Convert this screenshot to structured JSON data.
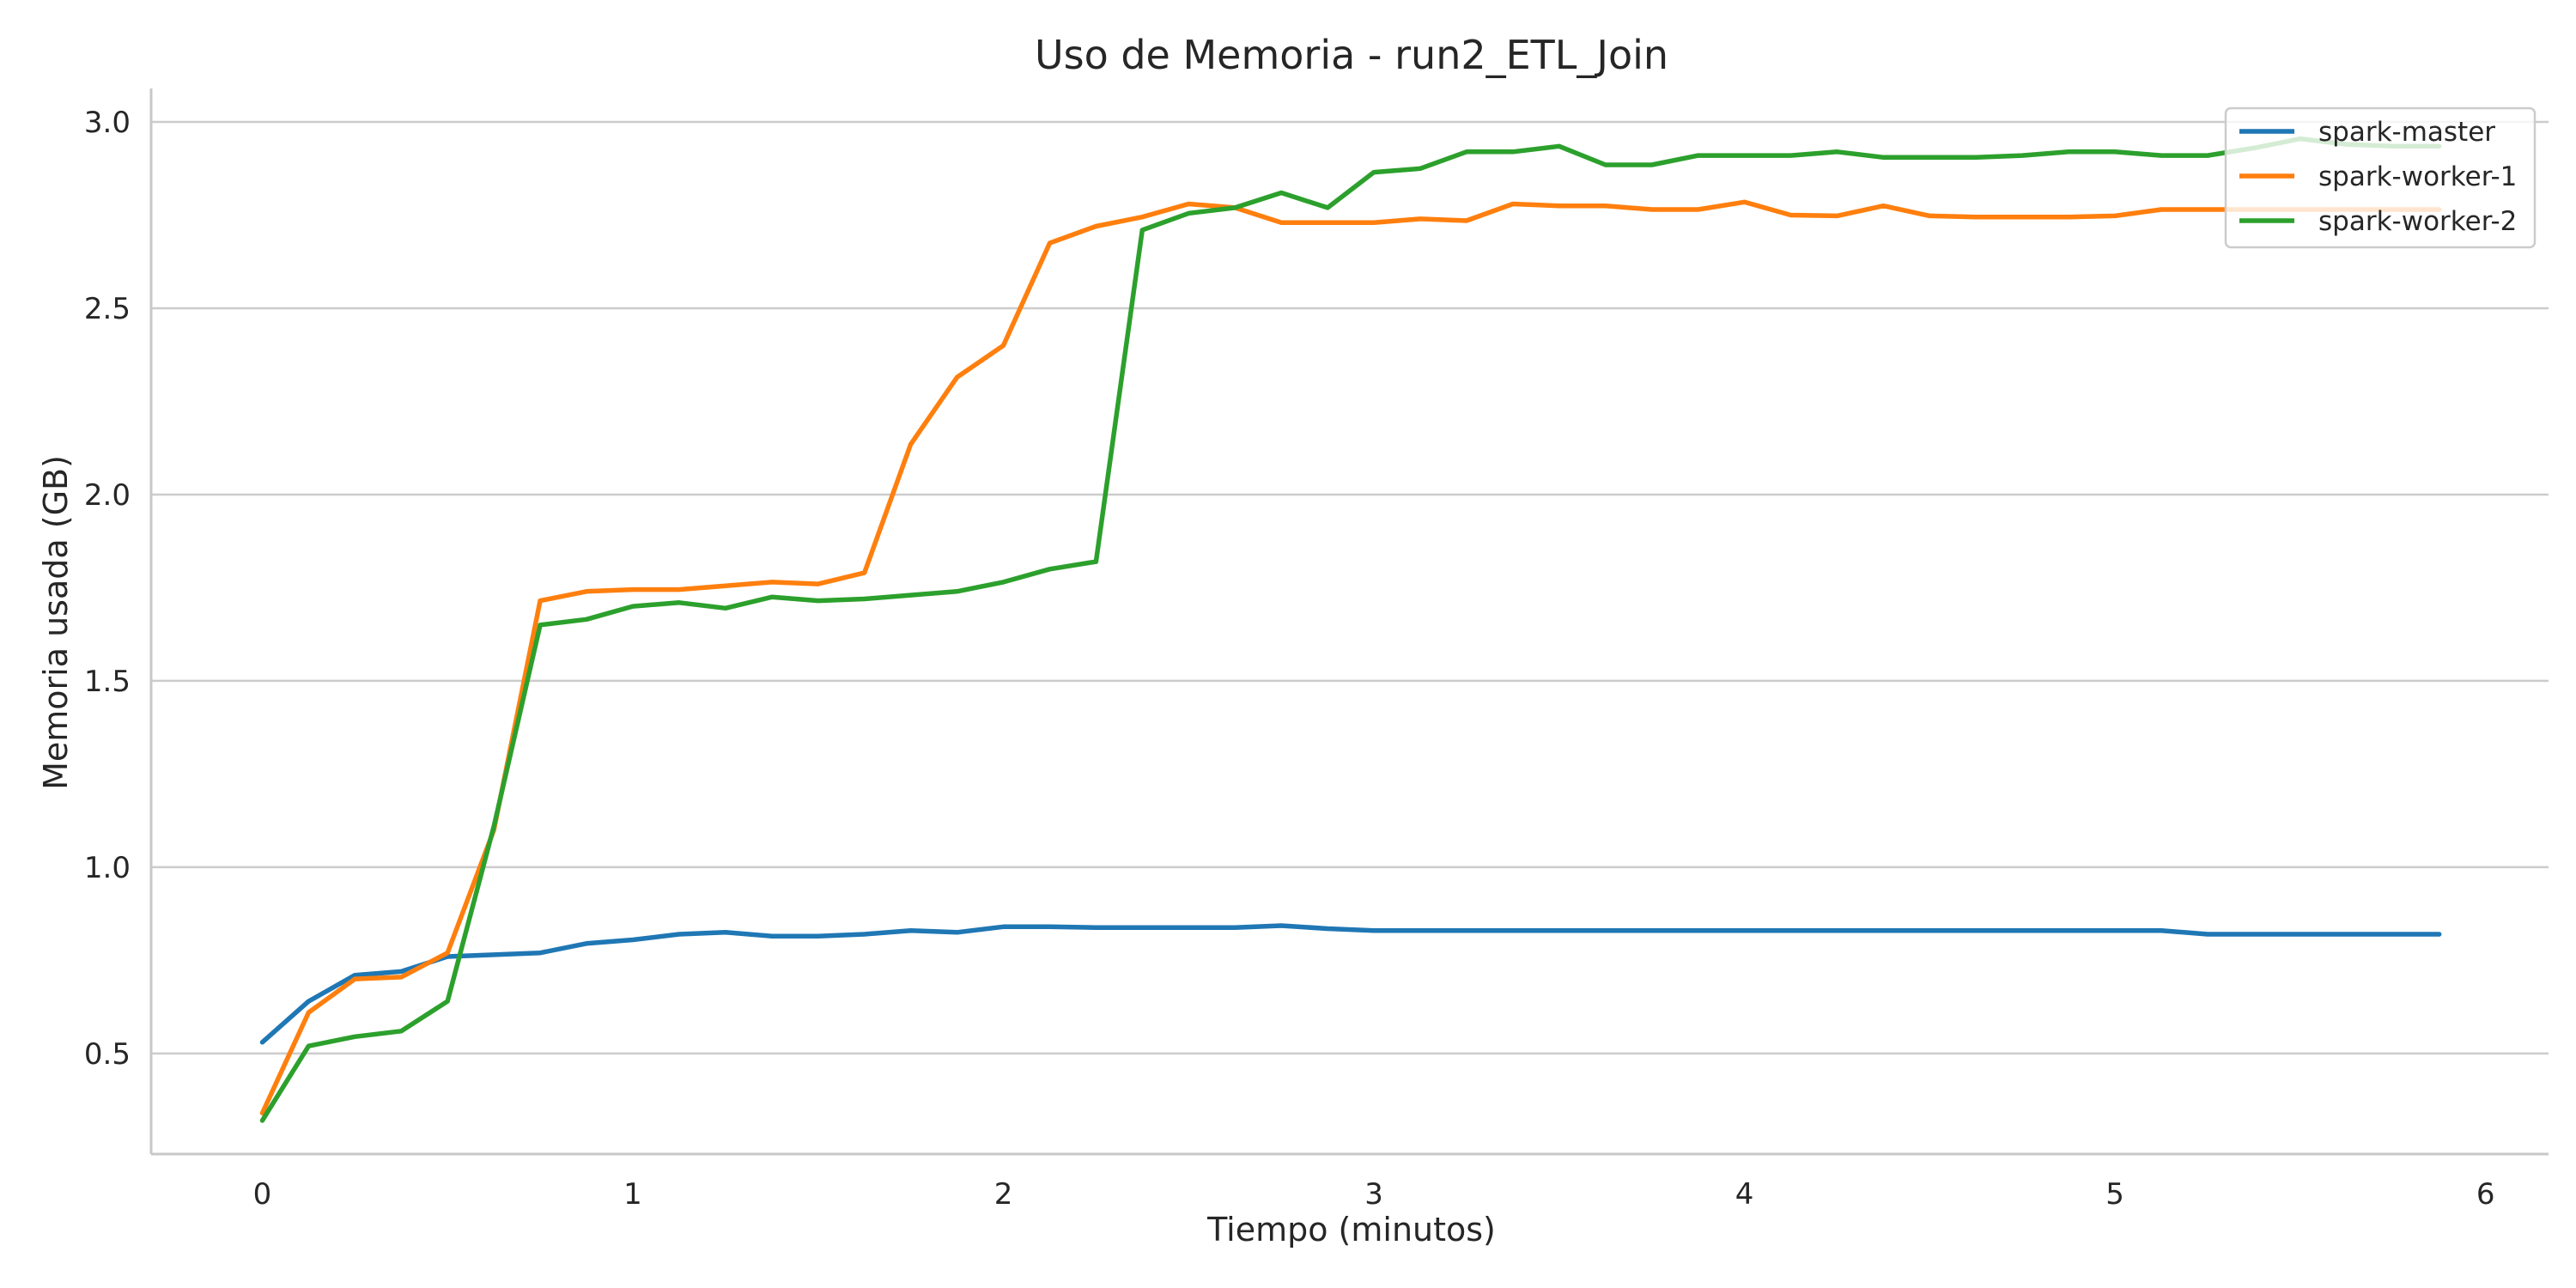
{
  "chart_data": {
    "type": "line",
    "title": "Uso de Memoria - run2_ETL_Join",
    "xlabel": "Tiempo (minutos)",
    "ylabel": "Memoria usada (GB)",
    "xlim": [
      -0.3,
      6.17
    ],
    "ylim": [
      0.23,
      3.09
    ],
    "xticks": [
      0,
      1,
      2,
      3,
      4,
      5,
      6
    ],
    "yticks": [
      0.5,
      1.0,
      1.5,
      2.0,
      2.5,
      3.0
    ],
    "xtick_labels": [
      "0",
      "1",
      "2",
      "3",
      "4",
      "5",
      "6"
    ],
    "ytick_labels": [
      "0.5",
      "1.0",
      "1.5",
      "2.0",
      "2.5",
      "3.0"
    ],
    "grid": "horizontal",
    "legend_position": "top-right",
    "x": [
      0,
      0.125,
      0.25,
      0.375,
      0.5,
      0.625,
      0.75,
      0.875,
      1.0,
      1.125,
      1.25,
      1.375,
      1.5,
      1.625,
      1.75,
      1.875,
      2.0,
      2.125,
      2.25,
      2.375,
      2.5,
      2.625,
      2.75,
      2.875,
      3.0,
      3.125,
      3.25,
      3.375,
      3.5,
      3.625,
      3.75,
      3.875,
      4.0,
      4.125,
      4.25,
      4.375,
      4.5,
      4.625,
      4.75,
      4.875,
      5.0,
      5.125,
      5.25,
      5.375,
      5.5,
      5.625,
      5.75,
      5.875
    ],
    "series": [
      {
        "name": "spark-master",
        "color": "#1f77b4",
        "values": [
          0.53,
          0.64,
          0.71,
          0.72,
          0.76,
          0.765,
          0.77,
          0.795,
          0.805,
          0.82,
          0.825,
          0.815,
          0.815,
          0.82,
          0.83,
          0.825,
          0.84,
          0.84,
          0.838,
          0.838,
          0.838,
          0.838,
          0.843,
          0.835,
          0.83,
          0.83,
          0.83,
          0.83,
          0.83,
          0.83,
          0.83,
          0.83,
          0.83,
          0.83,
          0.83,
          0.83,
          0.83,
          0.83,
          0.83,
          0.83,
          0.83,
          0.83,
          0.82,
          0.82,
          0.82,
          0.82,
          0.82,
          0.82
        ]
      },
      {
        "name": "spark-worker-1",
        "color": "#ff7f0e",
        "values": [
          0.34,
          0.61,
          0.7,
          0.705,
          0.77,
          1.1,
          1.715,
          1.74,
          1.745,
          1.745,
          1.755,
          1.765,
          1.76,
          1.79,
          2.135,
          2.315,
          2.4,
          2.675,
          2.72,
          2.745,
          2.78,
          2.77,
          2.73,
          2.73,
          2.73,
          2.74,
          2.735,
          2.78,
          2.775,
          2.775,
          2.765,
          2.765,
          2.785,
          2.75,
          2.748,
          2.775,
          2.748,
          2.745,
          2.745,
          2.745,
          2.748,
          2.765,
          2.765,
          2.765,
          2.765,
          2.765,
          2.765,
          2.765
        ]
      },
      {
        "name": "spark-worker-2",
        "color": "#2ca02c",
        "values": [
          0.32,
          0.52,
          0.545,
          0.56,
          0.64,
          1.11,
          1.65,
          1.665,
          1.7,
          1.71,
          1.695,
          1.725,
          1.715,
          1.72,
          1.73,
          1.74,
          1.765,
          1.8,
          1.82,
          2.71,
          2.755,
          2.77,
          2.81,
          2.77,
          2.865,
          2.875,
          2.92,
          2.92,
          2.935,
          2.885,
          2.885,
          2.91,
          2.91,
          2.91,
          2.92,
          2.905,
          2.905,
          2.905,
          2.91,
          2.92,
          2.92,
          2.91,
          2.91,
          2.93,
          2.955,
          2.94,
          2.935,
          2.935
        ]
      }
    ]
  }
}
